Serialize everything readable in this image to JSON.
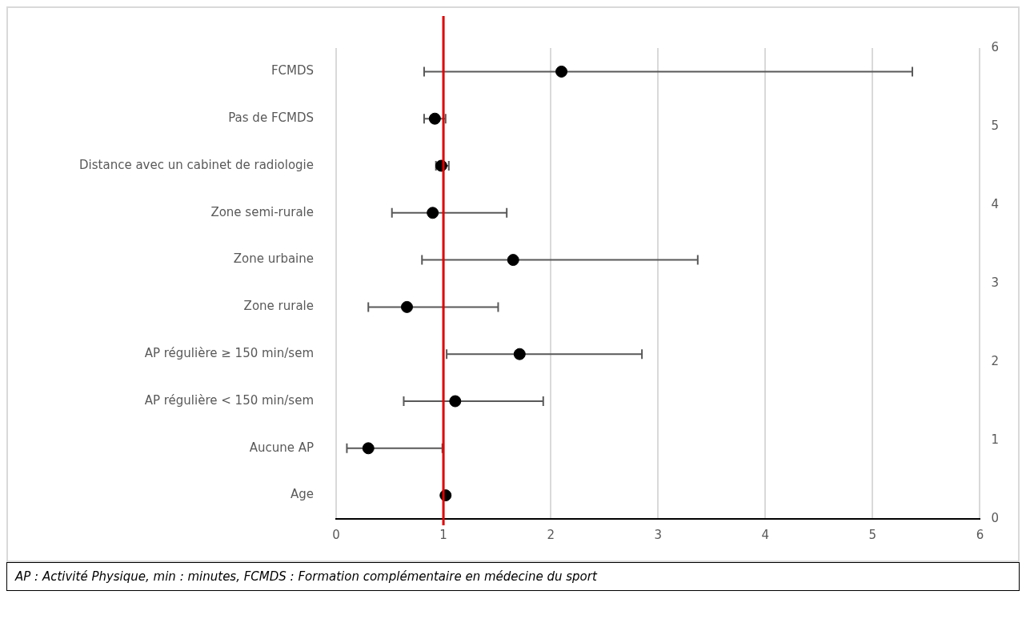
{
  "chart_data": {
    "type": "scatter",
    "orientation": "horizontal",
    "categories": [
      "FCMDS",
      "Pas de FCMDS",
      "Distance avec un cabinet de radiologie",
      "Zone semi-rurale",
      "Zone urbaine",
      "Zone rurale",
      "AP régulière ≥ 150 min/sem",
      "AP régulière < 150 min/sem",
      "Aucune AP",
      "Age"
    ],
    "series": [
      {
        "color": "#000000",
        "marker": "circle",
        "values": [
          2.1,
          0.92,
          0.98,
          0.9,
          1.65,
          0.66,
          1.71,
          1.11,
          0.3,
          1.02
        ],
        "errors": [
          [
            0.82,
            5.37
          ],
          [
            0.82,
            1.02
          ],
          [
            0.93,
            1.05
          ],
          [
            0.52,
            1.59
          ],
          [
            0.8,
            3.37
          ],
          [
            0.3,
            1.51
          ],
          [
            1.03,
            2.85
          ],
          [
            0.63,
            1.93
          ],
          [
            0.1,
            0.99
          ],
          null
        ]
      }
    ],
    "xlim": [
      0,
      6
    ],
    "xticks": [
      0,
      1,
      2,
      3,
      4,
      5,
      6
    ],
    "y2lim": [
      0,
      6
    ],
    "y2ticks": [
      0,
      1,
      2,
      3,
      4,
      5,
      6
    ],
    "grid": "x",
    "legend": false,
    "ref_lines": [
      {
        "axis": "x",
        "value": 1,
        "color": "#e00000"
      }
    ],
    "annotations": [
      "AP : Activité Physique, min : minutes, FCMDS : Formation complémentaire en médecine du sport"
    ]
  }
}
